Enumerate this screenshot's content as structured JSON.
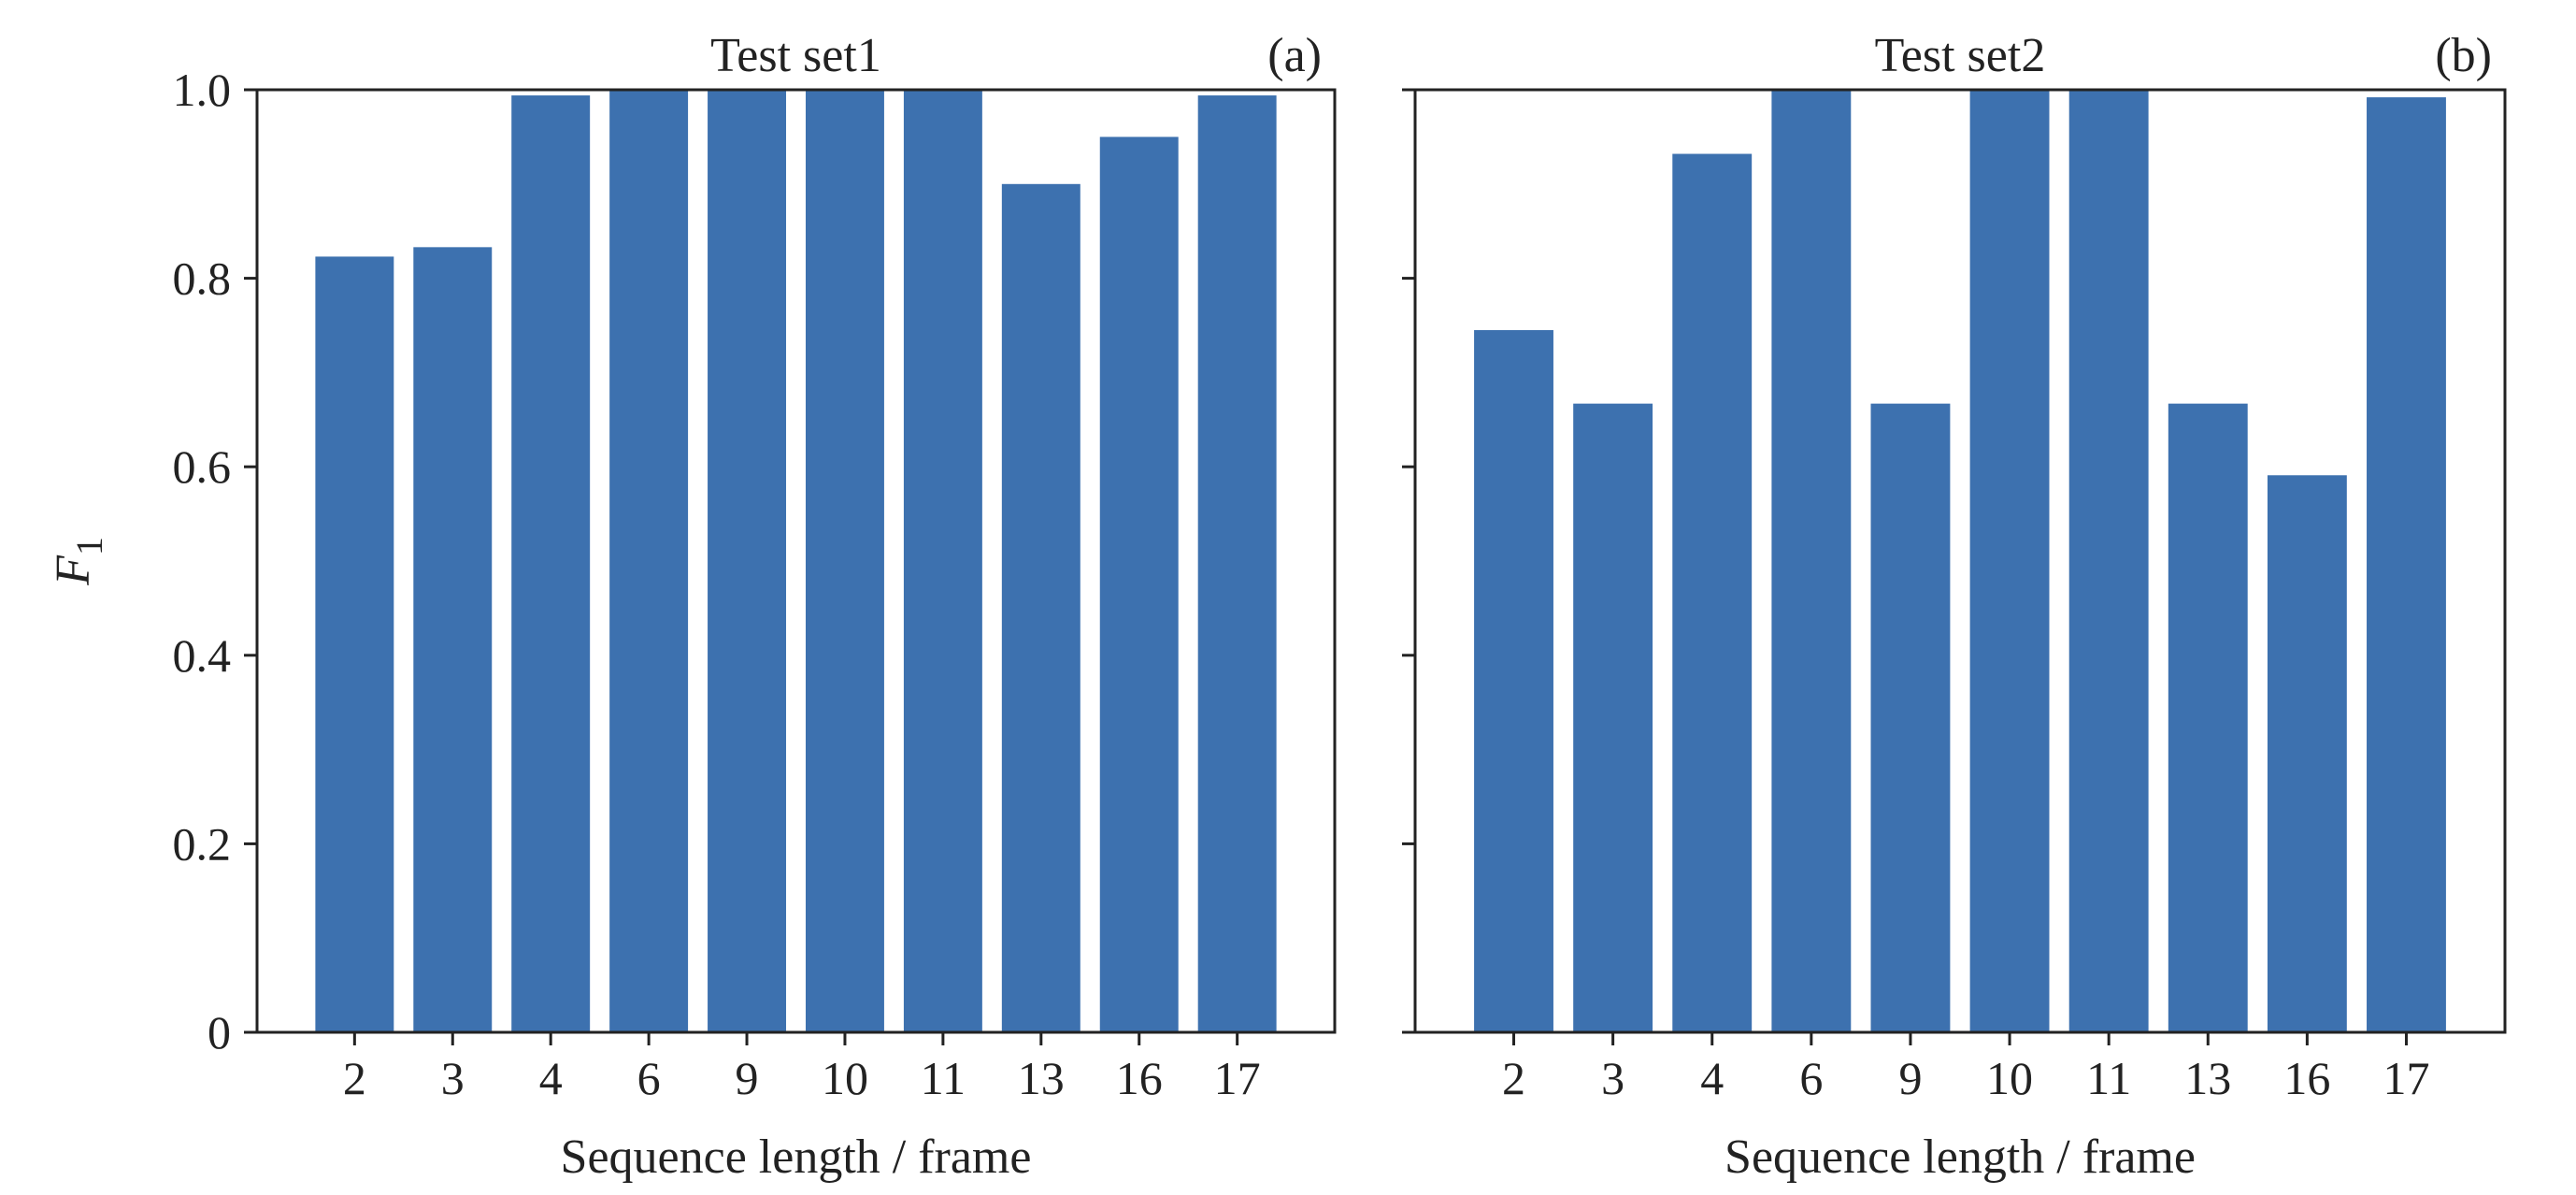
{
  "chart_data": [
    {
      "type": "bar",
      "title": "Test set1",
      "panel_label": "(a)",
      "categories": [
        "2",
        "3",
        "4",
        "6",
        "9",
        "10",
        "11",
        "13",
        "16",
        "17"
      ],
      "values": [
        0.823,
        0.833,
        0.994,
        1.0,
        1.0,
        1.0,
        1.0,
        0.9,
        0.95,
        0.994
      ],
      "xlabel": "Sequence length / frame",
      "ylabel": "F1",
      "ylabel_main": "F",
      "ylabel_sub": "1",
      "ylim": [
        0,
        1.0
      ],
      "yticks": [
        "0",
        "0.2",
        "0.4",
        "0.6",
        "0.8",
        "1.0"
      ],
      "show_ytick_labels": true,
      "bar_color": "#3d71af",
      "grid": false
    },
    {
      "type": "bar",
      "title": "Test set2",
      "panel_label": "(b)",
      "categories": [
        "2",
        "3",
        "4",
        "6",
        "9",
        "10",
        "11",
        "13",
        "16",
        "17"
      ],
      "values": [
        0.745,
        0.667,
        0.932,
        1.0,
        0.667,
        1.0,
        1.0,
        0.667,
        0.591,
        0.992
      ],
      "xlabel": "Sequence length / frame",
      "ylabel": "",
      "ylim": [
        0,
        1.0
      ],
      "yticks": [
        "0",
        "0.2",
        "0.4",
        "0.6",
        "0.8",
        "1.0"
      ],
      "show_ytick_labels": false,
      "bar_color": "#3d71af",
      "grid": false
    }
  ]
}
